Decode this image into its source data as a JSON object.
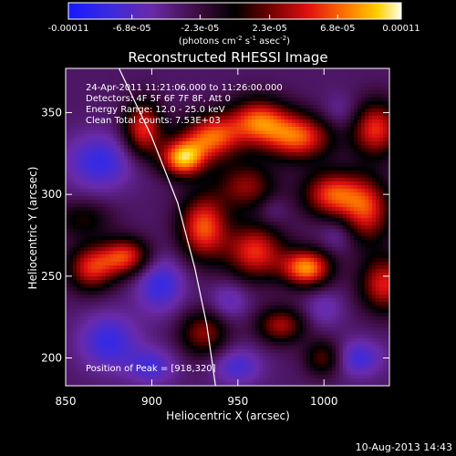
{
  "chart_data": {
    "type": "heatmap",
    "title": "Reconstructed RHESSI Image",
    "xlabel": "Heliocentric X (arcsec)",
    "ylabel": "Heliocentric Y (arcsec)",
    "xlim": [
      850,
      1038
    ],
    "ylim": [
      183,
      377
    ],
    "xticks": [
      850,
      900,
      950,
      1000
    ],
    "yticks": [
      200,
      250,
      300,
      350
    ],
    "colorbar": {
      "min": -0.00011,
      "max": 0.00011,
      "ticks": [
        {
          "value": -0.00011,
          "label": "-0.00011"
        },
        {
          "value": -6.8e-05,
          "label": "-6.8e-05"
        },
        {
          "value": -2.3e-05,
          "label": "-2.3e-05"
        },
        {
          "value": 2.3e-05,
          "label": "2.3e-05"
        },
        {
          "value": 6.8e-05,
          "label": "6.8e-05"
        },
        {
          "value": 0.00011,
          "label": "0.00011"
        }
      ],
      "unit_main": "(photons cm",
      "unit_exp1": "-2",
      "unit_mid": " s",
      "unit_exp2": "-1",
      "unit_end": " asec",
      "unit_exp3": "-2",
      "unit_close": ")"
    },
    "annotations": [
      "24-Apr-2011 11:21:06.000 to 11:26:00.000",
      "Detectors: 4F 5F 6F 7F 8F, Att 0",
      "Energy Range: 12.0 - 25.0 keV",
      "Clean     Total counts: 7.53E+03"
    ],
    "peak_label": "Position of Peak = [918,320]",
    "peak": [
      918,
      320
    ],
    "limb_curve": [
      [
        881,
        377
      ],
      [
        900,
        335
      ],
      [
        915,
        295
      ],
      [
        925,
        255
      ],
      [
        932,
        220
      ],
      [
        937,
        183
      ]
    ],
    "sources": [
      {
        "x": 918,
        "y": 322,
        "peak": 0.00011,
        "sx": 9,
        "sy": 8
      },
      {
        "x": 935,
        "y": 335,
        "peak": 9e-05,
        "sx": 12,
        "sy": 10
      },
      {
        "x": 962,
        "y": 345,
        "peak": 8.5e-05,
        "sx": 12,
        "sy": 10
      },
      {
        "x": 985,
        "y": 335,
        "peak": 9e-05,
        "sx": 14,
        "sy": 10
      },
      {
        "x": 955,
        "y": 305,
        "peak": 5.5e-05,
        "sx": 12,
        "sy": 10
      },
      {
        "x": 930,
        "y": 280,
        "peak": 9e-05,
        "sx": 10,
        "sy": 14
      },
      {
        "x": 960,
        "y": 265,
        "peak": 8e-05,
        "sx": 12,
        "sy": 12
      },
      {
        "x": 990,
        "y": 255,
        "peak": 0.000105,
        "sx": 10,
        "sy": 8
      },
      {
        "x": 1005,
        "y": 300,
        "peak": 8.5e-05,
        "sx": 12,
        "sy": 10
      },
      {
        "x": 1030,
        "y": 340,
        "peak": 8e-05,
        "sx": 10,
        "sy": 12
      },
      {
        "x": 1025,
        "y": 290,
        "peak": 7.5e-05,
        "sx": 10,
        "sy": 14
      },
      {
        "x": 1035,
        "y": 245,
        "peak": 7.5e-05,
        "sx": 10,
        "sy": 12
      },
      {
        "x": 975,
        "y": 220,
        "peak": 6e-05,
        "sx": 10,
        "sy": 8
      },
      {
        "x": 930,
        "y": 215,
        "peak": 5.5e-05,
        "sx": 10,
        "sy": 10
      },
      {
        "x": 1000,
        "y": 200,
        "peak": 4.5e-05,
        "sx": 8,
        "sy": 8
      },
      {
        "x": 865,
        "y": 255,
        "peak": 7.5e-05,
        "sx": 10,
        "sy": 10
      },
      {
        "x": 885,
        "y": 262,
        "peak": 8e-05,
        "sx": 10,
        "sy": 8
      },
      {
        "x": 895,
        "y": 340,
        "peak": 8e-05,
        "sx": 8,
        "sy": 12
      },
      {
        "x": 860,
        "y": 285,
        "peak": 3e-05,
        "sx": 12,
        "sy": 8
      },
      {
        "x": 870,
        "y": 320,
        "peak": -6e-05,
        "sx": 14,
        "sy": 12
      },
      {
        "x": 875,
        "y": 210,
        "peak": -6e-05,
        "sx": 12,
        "sy": 12
      },
      {
        "x": 900,
        "y": 195,
        "peak": -5e-05,
        "sx": 10,
        "sy": 8
      },
      {
        "x": 905,
        "y": 245,
        "peak": -6e-05,
        "sx": 10,
        "sy": 12
      },
      {
        "x": 945,
        "y": 235,
        "peak": -4e-05,
        "sx": 8,
        "sy": 8
      },
      {
        "x": 950,
        "y": 195,
        "peak": -5e-05,
        "sx": 10,
        "sy": 8
      },
      {
        "x": 1020,
        "y": 200,
        "peak": -5.5e-05,
        "sx": 10,
        "sy": 8
      },
      {
        "x": 1000,
        "y": 230,
        "peak": -3.5e-05,
        "sx": 8,
        "sy": 8
      },
      {
        "x": 1008,
        "y": 275,
        "peak": -3e-05,
        "sx": 7,
        "sy": 7
      },
      {
        "x": 1010,
        "y": 350,
        "peak": -3e-05,
        "sx": 8,
        "sy": 8
      },
      {
        "x": 970,
        "y": 290,
        "peak": -2.5e-05,
        "sx": 6,
        "sy": 6
      }
    ]
  },
  "footer": {
    "timestamp": "10-Aug-2013 14:43"
  }
}
